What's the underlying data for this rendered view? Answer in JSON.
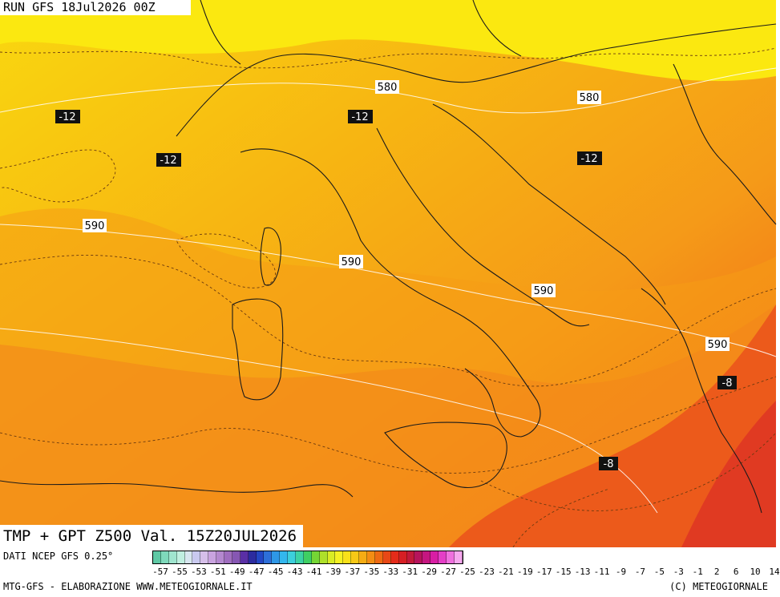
{
  "header": {
    "run": "RUN GFS 18Jul2026 00Z"
  },
  "title": {
    "product": "TMP + GPT Z500 Val. 15Z20JUL2026"
  },
  "footer": {
    "source": "DATI NCEP GFS 0.25°",
    "credit_left": "MTG-GFS - ELABORAZIONE WWW.METEOGIORNALE.IT",
    "credit_right": "(C) METEOGIORNALE"
  },
  "map_labels": {
    "gpt": [
      "580",
      "580",
      "590",
      "590",
      "590",
      "590"
    ],
    "tmp": [
      "-12",
      "-12",
      "-12",
      "-12",
      "-8",
      "-8"
    ]
  },
  "colorbar": {
    "ticks": [
      "-57",
      "-55",
      "-53",
      "-51",
      "-49",
      "-47",
      "-45",
      "-43",
      "-41",
      "-39",
      "-37",
      "-35",
      "-33",
      "-31",
      "-29",
      "-27",
      "-25",
      "-23",
      "-21",
      "-19",
      "-17",
      "-15",
      "-13",
      "-11",
      "-9",
      "-7",
      "-5",
      "-3",
      "-1",
      "2",
      "6",
      "10",
      "14"
    ],
    "colors": [
      "#5fc9a5",
      "#7fd9bb",
      "#a0e5cf",
      "#c0efe0",
      "#d8e6ef",
      "#c9c9ef",
      "#d6bfe9",
      "#c9a3df",
      "#b488cf",
      "#9f6dbf",
      "#8657b3",
      "#5a2fa5",
      "#2c2b9f",
      "#2346c4",
      "#2d6fd9",
      "#2e97e6",
      "#33b7ee",
      "#3ccfdc",
      "#3cd2a4",
      "#3fcf62",
      "#75d635",
      "#aee02a",
      "#d9ec25",
      "#f5f123",
      "#f9e11a",
      "#f7c816",
      "#f5ac14",
      "#f38d13",
      "#ee6a13",
      "#e84816",
      "#e42c1a",
      "#d61f24",
      "#c21a3a",
      "#b6145c",
      "#c51680",
      "#d81ea4",
      "#e43ec6",
      "#ef70de",
      "#f6a8ee"
    ],
    "colors_meta": "#ffffff"
  }
}
